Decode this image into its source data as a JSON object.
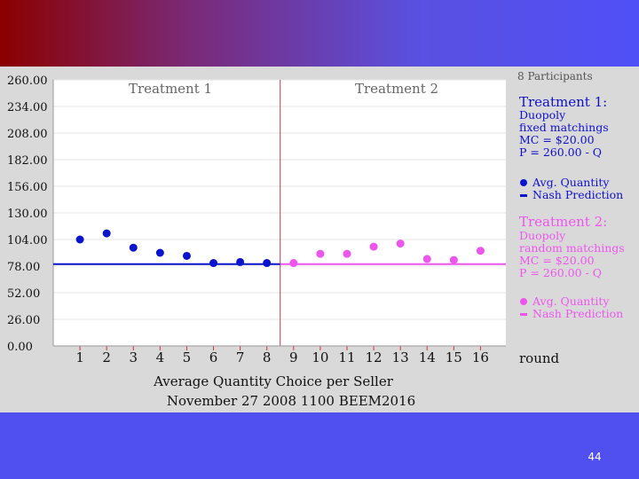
{
  "slide": {
    "page_number": "44",
    "bottom_caption": "November 27  2008 1100 BEEM2016"
  },
  "colors": {
    "t1": "#0a14cc",
    "t2": "#ee55ee",
    "divider": "#cc3344",
    "legend_t2_head": "#ee55ee"
  },
  "chart_data": {
    "type": "scatter",
    "title": "Average Quantity Choice per Seller",
    "xlabel": "Average Quantity Choice per Seller",
    "x_axis_word": "round",
    "ylim": [
      0,
      260
    ],
    "yticks": [
      "260.00",
      "234.00",
      "208.00",
      "182.00",
      "156.00",
      "130.00",
      "104.00",
      "78.00",
      "52.00",
      "26.00",
      "0.00"
    ],
    "ytick_values": [
      260,
      234,
      208,
      182,
      156,
      130,
      104,
      78,
      52,
      26,
      0
    ],
    "x": [
      1,
      2,
      3,
      4,
      5,
      6,
      7,
      8,
      9,
      10,
      11,
      12,
      13,
      14,
      15,
      16
    ],
    "treatment_labels": [
      "Treatment 1",
      "Treatment 2"
    ],
    "series": [
      {
        "name": "Treatment 1 Avg. Quantity",
        "x": [
          1,
          2,
          3,
          4,
          5,
          6,
          7,
          8
        ],
        "values": [
          104,
          110,
          96,
          91,
          88,
          81,
          82,
          81
        ]
      },
      {
        "name": "Treatment 2 Avg. Quantity",
        "x": [
          9,
          10,
          11,
          12,
          13,
          14,
          15,
          16
        ],
        "values": [
          81,
          90,
          90,
          97,
          100,
          85,
          84,
          93
        ]
      }
    ],
    "nash": [
      {
        "name": "Treatment 1 Nash Prediction",
        "value": 80,
        "x_range": [
          0.5,
          8.5
        ]
      },
      {
        "name": "Treatment 2 Nash Prediction",
        "value": 80,
        "x_range": [
          8.5,
          16.5
        ]
      }
    ]
  },
  "legend": {
    "participants": "8 Participants",
    "t1": {
      "heading": "Treatment 1",
      "colon": ":",
      "lines": [
        "Duopoly",
        "fixed matchings",
        "MC = $20.00",
        "P = 260.00 - Q"
      ],
      "avg": "Avg. Quantity",
      "nash": "Nash Prediction"
    },
    "t2": {
      "heading": "Treatment 2:",
      "lines": [
        "Duopoly",
        "random matchings",
        "MC = $20.00",
        "P = 260.00 - Q"
      ],
      "avg": "Avg. Quantity",
      "nash": "Nash Prediction"
    }
  }
}
